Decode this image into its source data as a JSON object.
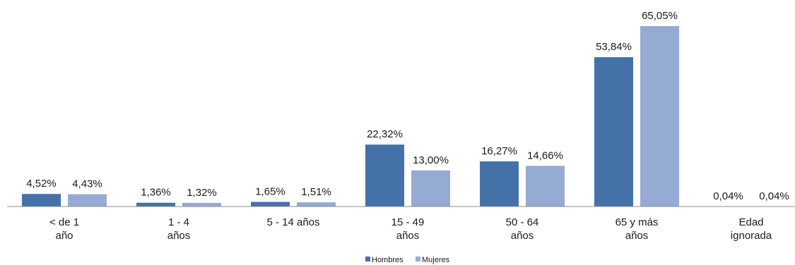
{
  "chart_data": {
    "type": "bar",
    "categories": [
      [
        "< de 1",
        "año"
      ],
      [
        "1 - 4",
        "años"
      ],
      [
        "5 - 14 años"
      ],
      [
        "15 - 49",
        "años"
      ],
      [
        "50 - 64",
        "años"
      ],
      [
        "65 y más",
        "años"
      ],
      [
        "Edad",
        "ignorada"
      ]
    ],
    "series": [
      {
        "name": "Hombres",
        "color": "#4472a8",
        "values": [
          4.52,
          1.36,
          1.65,
          22.32,
          16.27,
          53.84,
          0.04
        ],
        "labels": [
          "4,52%",
          "1,36%",
          "1,65%",
          "22,32%",
          "16,27%",
          "53,84%",
          "0,04%"
        ]
      },
      {
        "name": "Mujeres",
        "color": "#95abd3",
        "values": [
          4.43,
          1.32,
          1.51,
          13.0,
          14.66,
          65.05,
          0.04
        ],
        "labels": [
          "4,43%",
          "1,32%",
          "1,51%",
          "13,00%",
          "14,66%",
          "65,05%",
          "0,04%"
        ]
      }
    ],
    "ylim": [
      0,
      65.05
    ],
    "legend_position": "bottom",
    "grid": false
  }
}
